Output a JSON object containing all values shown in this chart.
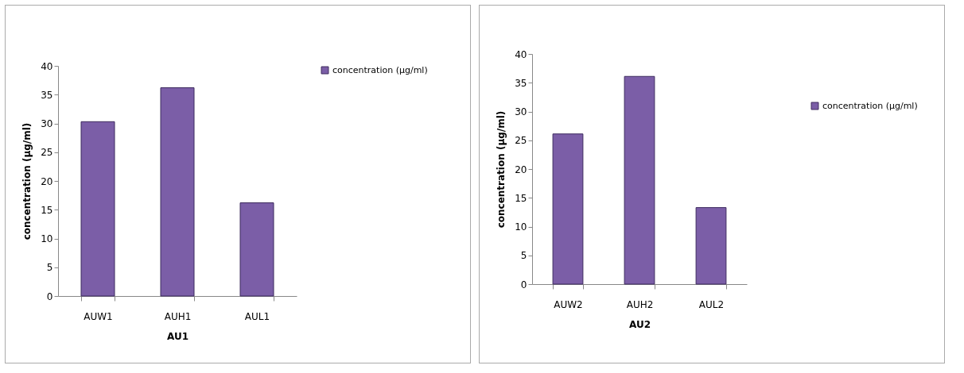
{
  "chart_data": [
    {
      "type": "bar",
      "xlabel": "AU1",
      "ylabel": "concentration (µg/ml)",
      "categories": [
        "AUW1",
        "AUH1",
        "AUL1"
      ],
      "series": [
        {
          "name": "concentration (µg/ml)",
          "color": "#7b5ea7",
          "values": [
            30.3,
            36.2,
            16.2
          ]
        }
      ],
      "ylim": [
        0,
        40
      ],
      "yticks": [
        0,
        5,
        10,
        15,
        20,
        25,
        30,
        35,
        40
      ],
      "grid": false,
      "legend": "top right"
    },
    {
      "type": "bar",
      "xlabel": "AU2",
      "ylabel": "concentration (µg/ml)",
      "categories": [
        "AUW2",
        "AUH2",
        "AUL2"
      ],
      "series": [
        {
          "name": "concentration (µg/ml)",
          "color": "#7b5ea7",
          "values": [
            26.1,
            36.1,
            13.3
          ]
        }
      ],
      "ylim": [
        0,
        40
      ],
      "yticks": [
        0,
        5,
        10,
        15,
        20,
        25,
        30,
        35,
        40
      ],
      "grid": false,
      "legend": "right"
    }
  ]
}
